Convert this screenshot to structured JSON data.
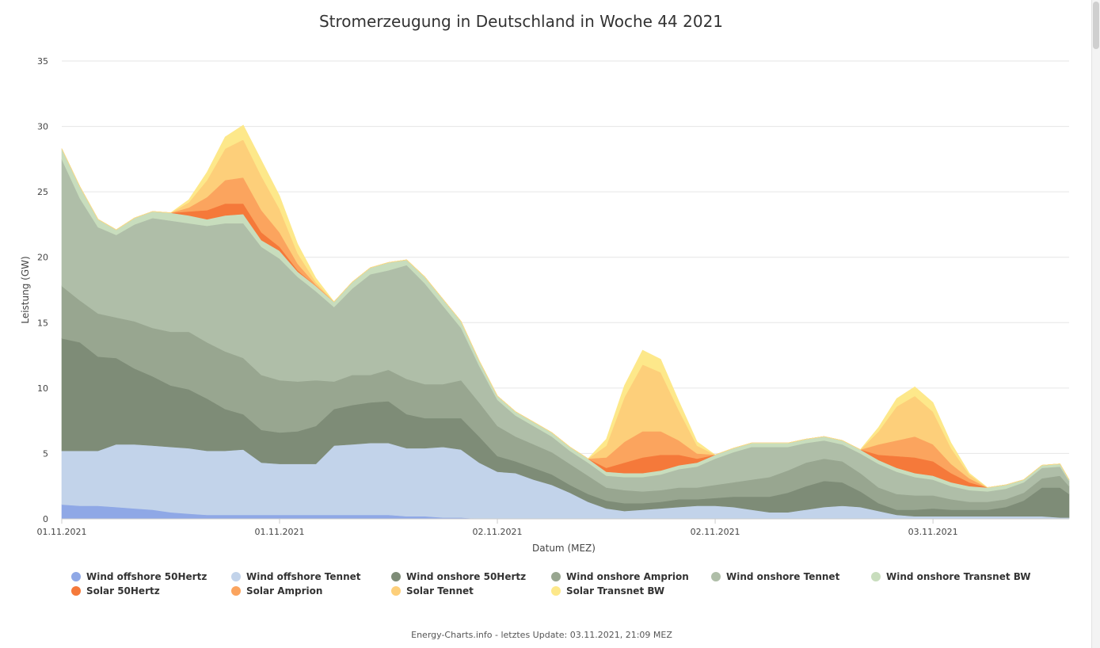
{
  "chart_data": {
    "type": "area",
    "stacked": true,
    "title": "Stromerzeugung in Deutschland in Woche 44 2021",
    "xlabel": "Datum (MEZ)",
    "ylabel": "Leistung (GW)",
    "ylim": [
      0,
      35
    ],
    "yticks": [
      0,
      5,
      10,
      15,
      20,
      25,
      30,
      35
    ],
    "xlim": [
      0,
      55.5
    ],
    "xtick_positions": [
      0,
      12,
      24,
      36,
      48,
      60
    ],
    "xtick_labels": [
      "01.11.2021",
      "01.11.2021",
      "02.11.2021",
      "02.11.2021",
      "03.11.2021",
      "03.11.2021"
    ],
    "grid": true,
    "legend_position": "bottom",
    "x": [
      0,
      1,
      2,
      3,
      4,
      5,
      6,
      7,
      8,
      9,
      10,
      11,
      12,
      13,
      14,
      15,
      16,
      17,
      18,
      19,
      20,
      21,
      22,
      23,
      24,
      25,
      26,
      27,
      28,
      29,
      30,
      31,
      32,
      33,
      34,
      35,
      36,
      37,
      38,
      39,
      40,
      41,
      42,
      43,
      44,
      45,
      46,
      47,
      48,
      49,
      50,
      51,
      52,
      53,
      54,
      55,
      55.5
    ],
    "series": [
      {
        "name": "Wind offshore 50Hertz",
        "color": "#8fa8e6",
        "values": [
          1.1,
          1.0,
          1.0,
          0.9,
          0.8,
          0.7,
          0.5,
          0.4,
          0.3,
          0.3,
          0.3,
          0.3,
          0.3,
          0.3,
          0.3,
          0.3,
          0.3,
          0.3,
          0.3,
          0.2,
          0.2,
          0.1,
          0.1,
          0.0,
          0.0,
          0.0,
          0.0,
          0.0,
          0.0,
          0.0,
          0.0,
          0.0,
          0.0,
          0.0,
          0.0,
          0.0,
          0.0,
          0.0,
          0.0,
          0.0,
          0.0,
          0.0,
          0.0,
          0.0,
          0.0,
          0.0,
          0.0,
          0.0,
          0.0,
          0.0,
          0.0,
          0.0,
          0.0,
          0.0,
          0.0,
          0.0,
          0.0
        ]
      },
      {
        "name": "Wind offshore Tennet",
        "color": "#c2d3ea",
        "values": [
          4.1,
          4.2,
          4.2,
          4.8,
          4.9,
          4.9,
          5.0,
          5.0,
          4.9,
          4.9,
          5.0,
          4.0,
          3.9,
          3.9,
          3.9,
          5.3,
          5.4,
          5.5,
          5.5,
          5.2,
          5.2,
          5.4,
          5.2,
          4.3,
          3.6,
          3.5,
          3.0,
          2.6,
          2.0,
          1.3,
          0.8,
          0.6,
          0.7,
          0.8,
          0.9,
          1.0,
          1.0,
          0.9,
          0.7,
          0.5,
          0.5,
          0.7,
          0.9,
          1.0,
          0.9,
          0.6,
          0.3,
          0.2,
          0.2,
          0.2,
          0.2,
          0.2,
          0.2,
          0.2,
          0.2,
          0.1,
          0.1
        ]
      },
      {
        "name": "Wind onshore 50Hertz",
        "color": "#7e8c77",
        "values": [
          8.6,
          8.3,
          7.2,
          6.6,
          5.8,
          5.3,
          4.7,
          4.5,
          4.0,
          3.2,
          2.7,
          2.5,
          2.4,
          2.5,
          2.9,
          2.8,
          3.0,
          3.1,
          3.2,
          2.6,
          2.3,
          2.2,
          2.4,
          2.0,
          1.2,
          0.9,
          0.9,
          0.8,
          0.6,
          0.6,
          0.6,
          0.6,
          0.5,
          0.5,
          0.6,
          0.5,
          0.6,
          0.8,
          1.0,
          1.2,
          1.5,
          1.8,
          2.0,
          1.8,
          1.2,
          0.6,
          0.4,
          0.5,
          0.6,
          0.5,
          0.5,
          0.5,
          0.7,
          1.2,
          2.2,
          2.3,
          1.8
        ]
      },
      {
        "name": "Wind onshore Amprion",
        "color": "#98a690",
        "values": [
          4.0,
          3.2,
          3.3,
          3.1,
          3.6,
          3.7,
          4.1,
          4.4,
          4.3,
          4.4,
          4.3,
          4.2,
          4.0,
          3.8,
          3.5,
          2.1,
          2.3,
          2.1,
          2.4,
          2.7,
          2.6,
          2.6,
          2.9,
          2.6,
          2.3,
          1.9,
          1.8,
          1.7,
          1.6,
          1.4,
          1.0,
          1.0,
          0.9,
          0.9,
          0.9,
          0.9,
          1.0,
          1.1,
          1.3,
          1.5,
          1.7,
          1.8,
          1.7,
          1.6,
          1.4,
          1.2,
          1.2,
          1.1,
          1.0,
          0.8,
          0.6,
          0.6,
          0.6,
          0.6,
          0.7,
          0.9,
          0.6
        ]
      },
      {
        "name": "Wind onshore Tennet",
        "color": "#afbea8",
        "values": [
          9.7,
          7.8,
          6.6,
          6.3,
          7.4,
          8.4,
          8.5,
          8.3,
          8.9,
          9.8,
          10.3,
          9.8,
          9.3,
          8.0,
          6.8,
          5.7,
          6.6,
          7.7,
          7.6,
          8.7,
          7.7,
          6.0,
          4.0,
          2.8,
          2.0,
          1.6,
          1.4,
          1.2,
          1.0,
          1.0,
          0.9,
          1.0,
          1.1,
          1.2,
          1.4,
          1.6,
          2.0,
          2.3,
          2.5,
          2.3,
          1.8,
          1.5,
          1.4,
          1.3,
          1.5,
          1.8,
          1.7,
          1.4,
          1.2,
          1.0,
          0.9,
          0.8,
          0.8,
          0.8,
          0.8,
          0.7,
          0.4
        ]
      },
      {
        "name": "Wind onshore Transnet BW",
        "color": "#c8ddbd",
        "values": [
          0.8,
          0.9,
          0.6,
          0.4,
          0.5,
          0.5,
          0.6,
          0.6,
          0.5,
          0.6,
          0.7,
          0.5,
          0.6,
          0.4,
          0.4,
          0.4,
          0.5,
          0.5,
          0.6,
          0.4,
          0.5,
          0.5,
          0.5,
          0.4,
          0.3,
          0.3,
          0.3,
          0.3,
          0.3,
          0.3,
          0.3,
          0.3,
          0.3,
          0.3,
          0.3,
          0.3,
          0.3,
          0.3,
          0.3,
          0.3,
          0.3,
          0.3,
          0.3,
          0.3,
          0.3,
          0.3,
          0.3,
          0.3,
          0.3,
          0.3,
          0.3,
          0.3,
          0.3,
          0.2,
          0.2,
          0.2,
          0.1
        ]
      },
      {
        "name": "Solar 50Hertz",
        "color": "#f5793a",
        "values": [
          0,
          0,
          0,
          0,
          0,
          0,
          0,
          0.3,
          0.7,
          0.9,
          0.8,
          0.6,
          0.3,
          0.1,
          0,
          0,
          0,
          0,
          0,
          0,
          0,
          0,
          0,
          0,
          0,
          0,
          0,
          0,
          0,
          0,
          0.3,
          0.8,
          1.2,
          1.2,
          0.8,
          0.3,
          0,
          0,
          0,
          0,
          0,
          0,
          0,
          0,
          0,
          0.4,
          0.9,
          1.2,
          1.1,
          0.7,
          0.3,
          0,
          0,
          0,
          0,
          0,
          0
        ]
      },
      {
        "name": "Solar Amprion",
        "color": "#fba45e",
        "values": [
          0,
          0,
          0,
          0,
          0,
          0,
          0,
          0.3,
          1.0,
          1.8,
          2.0,
          1.7,
          1.1,
          0.5,
          0.1,
          0,
          0,
          0,
          0,
          0,
          0,
          0,
          0,
          0,
          0,
          0,
          0,
          0,
          0,
          0,
          0.8,
          1.6,
          2.0,
          1.8,
          1.1,
          0.4,
          0,
          0,
          0,
          0,
          0,
          0,
          0,
          0,
          0,
          0.8,
          1.2,
          1.6,
          1.3,
          0.7,
          0.3,
          0,
          0,
          0,
          0,
          0,
          0
        ]
      },
      {
        "name": "Solar Tennet",
        "color": "#fdcf7a",
        "values": [
          0,
          0,
          0,
          0,
          0,
          0,
          0,
          0.4,
          1.3,
          2.4,
          2.9,
          2.6,
          1.8,
          0.8,
          0.2,
          0,
          0,
          0,
          0,
          0,
          0,
          0,
          0,
          0,
          0,
          0,
          0,
          0,
          0,
          0,
          0.9,
          3.4,
          5.1,
          4.5,
          2.3,
          0.6,
          0,
          0,
          0,
          0,
          0,
          0,
          0,
          0,
          0,
          1.0,
          2.6,
          3.1,
          2.5,
          1.2,
          0.3,
          0,
          0,
          0,
          0,
          0,
          0
        ]
      },
      {
        "name": "Solar Transnet BW",
        "color": "#fde88a",
        "values": [
          0,
          0,
          0,
          0,
          0,
          0,
          0,
          0.2,
          0.6,
          0.9,
          1.1,
          1.2,
          1.0,
          0.7,
          0.3,
          0,
          0,
          0,
          0,
          0,
          0,
          0,
          0,
          0,
          0,
          0,
          0,
          0,
          0,
          0,
          0.5,
          0.9,
          1.1,
          1.0,
          0.7,
          0.3,
          0,
          0,
          0,
          0,
          0,
          0,
          0,
          0,
          0,
          0.3,
          0.6,
          0.7,
          0.7,
          0.4,
          0.1,
          0,
          0,
          0,
          0,
          0,
          0
        ]
      }
    ]
  },
  "footer": {
    "credits": "Energy-Charts.info - letztes Update: 03.11.2021, 21:09 MEZ"
  }
}
